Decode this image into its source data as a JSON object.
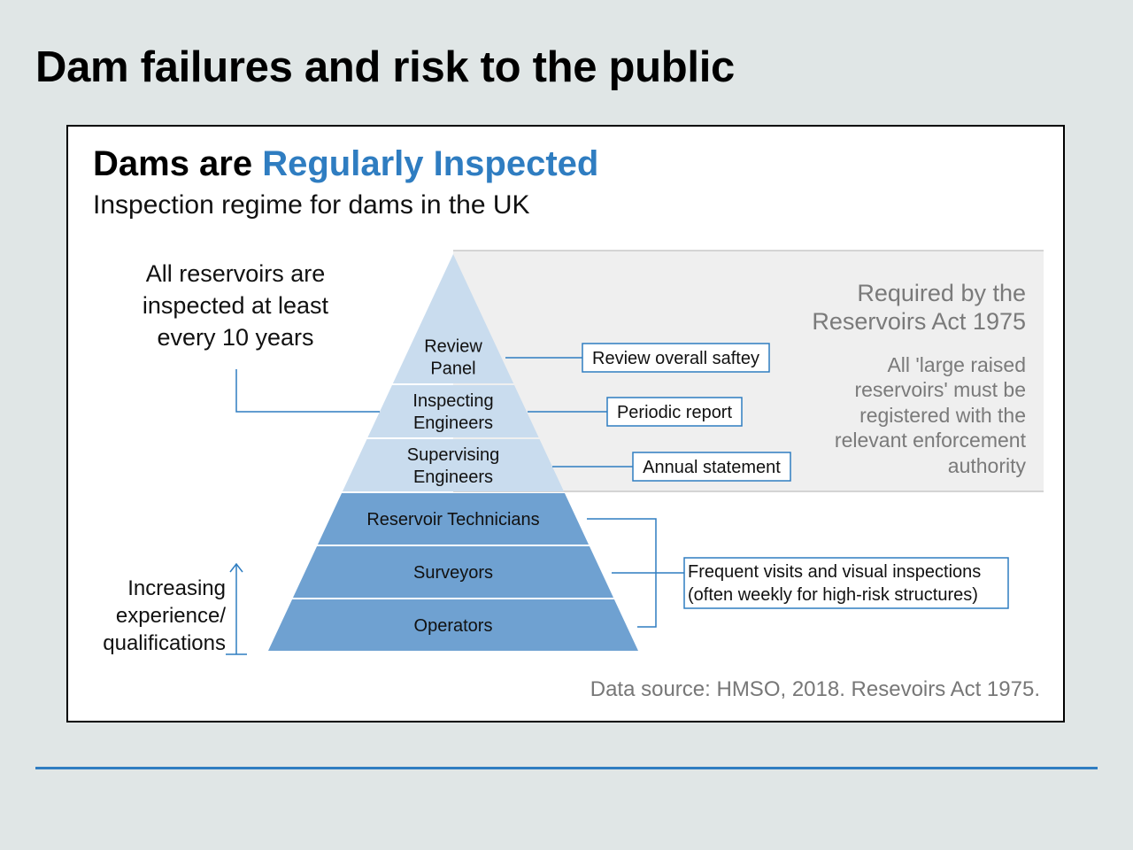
{
  "slide": {
    "title": "Dam failures and risk to the public"
  },
  "panel": {
    "title_lead": "Dams are ",
    "title_accent": "Regularly Inspected",
    "subtitle": "Inspection regime for dams in the UK",
    "source": "Data source: HMSO, 2018. Resevoirs Act 1975."
  },
  "colors": {
    "light_tier": "#c9dcee",
    "dark_tier": "#6fa1d1",
    "accent": "#2f7dc1",
    "connector": "#2f7dc1",
    "act_region": "#efefef"
  },
  "pyramid": {
    "tiers": [
      {
        "lines": [
          "Review",
          "Panel"
        ],
        "shade": "light"
      },
      {
        "lines": [
          "Inspecting",
          "Engineers"
        ],
        "shade": "light"
      },
      {
        "lines": [
          "Supervising",
          "Engineers"
        ],
        "shade": "light"
      },
      {
        "lines": [
          "Reservoir Technicians"
        ],
        "shade": "dark"
      },
      {
        "lines": [
          "Surveyors"
        ],
        "shade": "dark"
      },
      {
        "lines": [
          "Operators"
        ],
        "shade": "dark"
      }
    ]
  },
  "callouts": {
    "review_panel": "Review overall saftey",
    "inspecting_engineers": "Periodic report",
    "supervising_engineers": "Annual statement",
    "frequent": [
      "Frequent visits and visual inspections",
      "(often weekly for high-risk structures)"
    ]
  },
  "notes": {
    "all_reservoirs": [
      "All reservoirs are",
      "inspected at least",
      "every 10 years"
    ],
    "act_heading": [
      "Required by the",
      "Reservoirs Act 1975"
    ],
    "act_body": [
      "All 'large raised",
      "reservoirs' must be",
      "registered with the",
      "relevant enforcement",
      "authority"
    ],
    "experience": [
      "Increasing",
      "experience/",
      "qualifications"
    ]
  }
}
